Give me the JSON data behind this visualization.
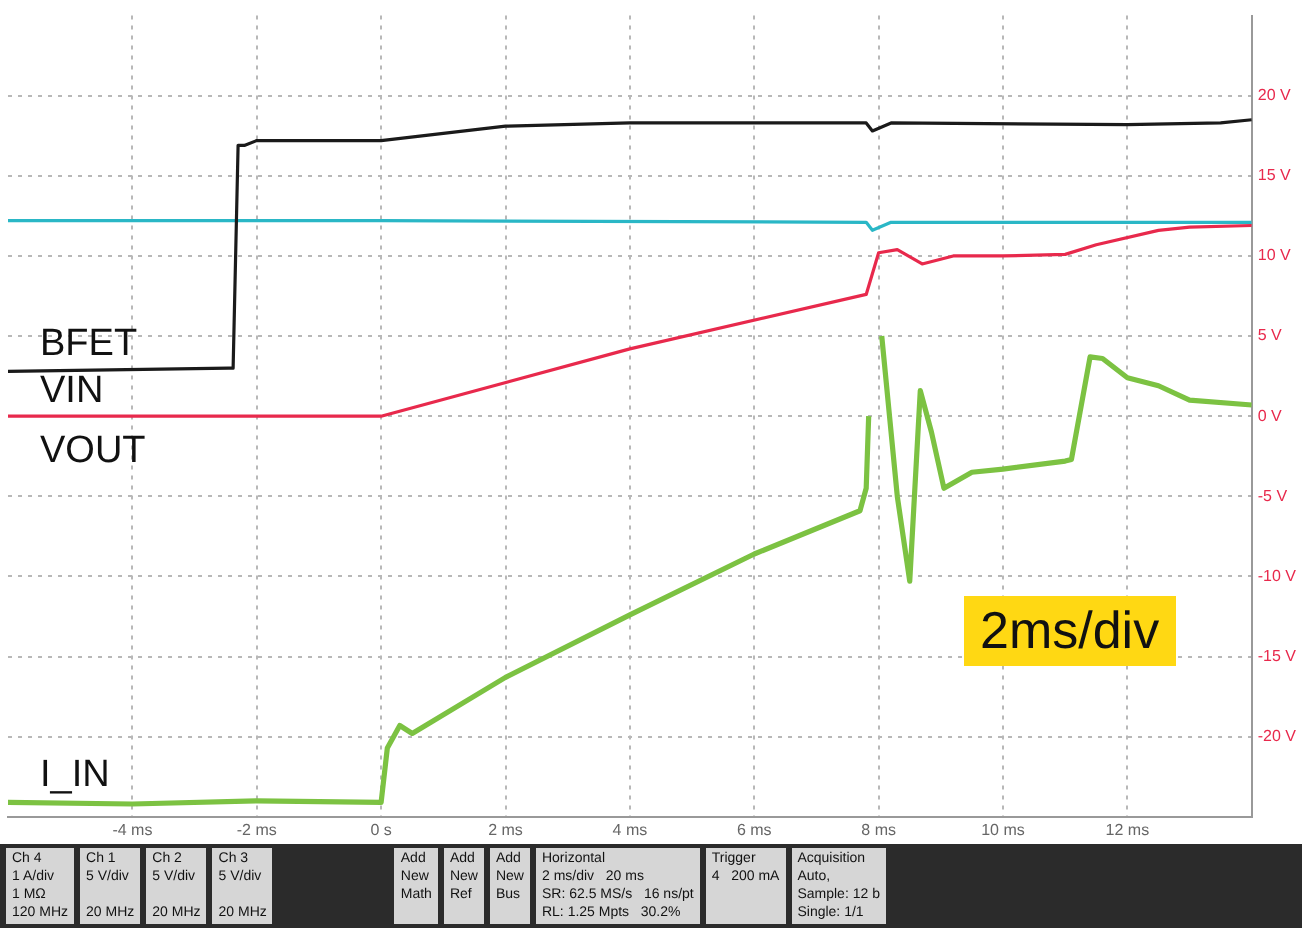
{
  "chart_data": {
    "type": "line",
    "marker": "none",
    "grid": true,
    "legend": false,
    "xlim": [
      -6,
      14
    ],
    "ylim": [
      -25,
      25
    ],
    "xticks": [
      {
        "value": -4,
        "label": "-4 ms"
      },
      {
        "value": -2,
        "label": "-2 ms"
      },
      {
        "value": 0,
        "label": "0 s"
      },
      {
        "value": 2,
        "label": "2 ms"
      },
      {
        "value": 4,
        "label": "4 ms"
      },
      {
        "value": 6,
        "label": "6 ms"
      },
      {
        "value": 8,
        "label": "8 ms"
      },
      {
        "value": 10,
        "label": "10 ms"
      },
      {
        "value": 12,
        "label": "12 ms"
      }
    ],
    "yticks": [
      {
        "value": 20,
        "label": "20 V"
      },
      {
        "value": 15,
        "label": "15 V"
      },
      {
        "value": 10,
        "label": "10 V"
      },
      {
        "value": 5,
        "label": "5 V"
      },
      {
        "value": 0,
        "label": "0 V"
      },
      {
        "value": -5,
        "label": "-5 V"
      },
      {
        "value": -10,
        "label": "-10 V"
      },
      {
        "value": -15,
        "label": "-15 V"
      },
      {
        "value": -20,
        "label": "-20 V"
      }
    ],
    "series": [
      {
        "name": "BFET",
        "color": "#1a1a1a",
        "x": [
          -6,
          -2.45,
          -2.38,
          -2.3,
          -2.2,
          -2,
          0,
          2,
          4,
          7.8,
          7.9,
          8.2,
          12,
          13.5,
          14
        ],
        "values": [
          2.8,
          3.0,
          3.0,
          16.9,
          16.9,
          17.2,
          17.2,
          18.1,
          18.3,
          18.3,
          17.8,
          18.3,
          18.2,
          18.3,
          18.5
        ]
      },
      {
        "color": "#2ab7c6",
        "x": [
          -6,
          0,
          7.8,
          7.9,
          8.2,
          14
        ],
        "values": [
          12.2,
          12.2,
          12.1,
          11.6,
          12.1,
          12.1
        ]
      },
      {
        "name": "VOUT",
        "color": "#e8294c",
        "x": [
          -6,
          0,
          4,
          7.8,
          8.0,
          8.3,
          8.7,
          9.2,
          10,
          11,
          11.5,
          12.5,
          13,
          14
        ],
        "values": [
          0,
          0,
          4.2,
          7.6,
          10.2,
          10.4,
          9.5,
          10.0,
          10.0,
          10.1,
          10.7,
          11.6,
          11.8,
          11.9
        ]
      },
      {
        "name": "I_IN",
        "color": "#7cc242",
        "x": [
          -6,
          -4,
          -2,
          0,
          0.1,
          0.3,
          0.5,
          2,
          4,
          6,
          7.7,
          7.8,
          7.84,
          7.87,
          7.9,
          8.05,
          8.3,
          8.5,
          8.67,
          8.85,
          9.05,
          9.5,
          10,
          11,
          11.1,
          11.4,
          11.6,
          12,
          12.5,
          13,
          14
        ],
        "values": [
          -24.1,
          -24.2,
          -24,
          -24.1,
          -20.7,
          -19.3,
          -19.8,
          -16.3,
          -12.4,
          -8.6,
          -5.9,
          -4.5,
          0,
          null,
          null,
          5,
          -5,
          -10.3,
          1.6,
          -1,
          -4.5,
          -3.5,
          -3.3,
          -2.8,
          -2.7,
          3.7,
          3.6,
          2.4,
          1.9,
          1.0,
          0.7
        ]
      }
    ],
    "annotations": [
      "VIN",
      "2ms/div",
      "Ch 4\n1 A/div\n1 MΩ\n120 MHz",
      "Ch 1\n5 V/div\n\n20 MHz",
      "Ch 2\n5 V/div\n\n20 MHz",
      "Ch 3\n5 V/div\n\n20 MHz",
      "Add\nNew\nMath",
      "Add\nNew\nRef",
      "Add\nNew\nBus",
      "Horizontal\n2 ms/div   20 ms\nSR: 62.5 MS/s   16 ns/pt\nRL: 1.25 Mpts   30.2%",
      "Trigger\n4   200 mA",
      "Acquisition\nAuto,\nSample: 12 b\nSingle: 1/1"
    ]
  }
}
